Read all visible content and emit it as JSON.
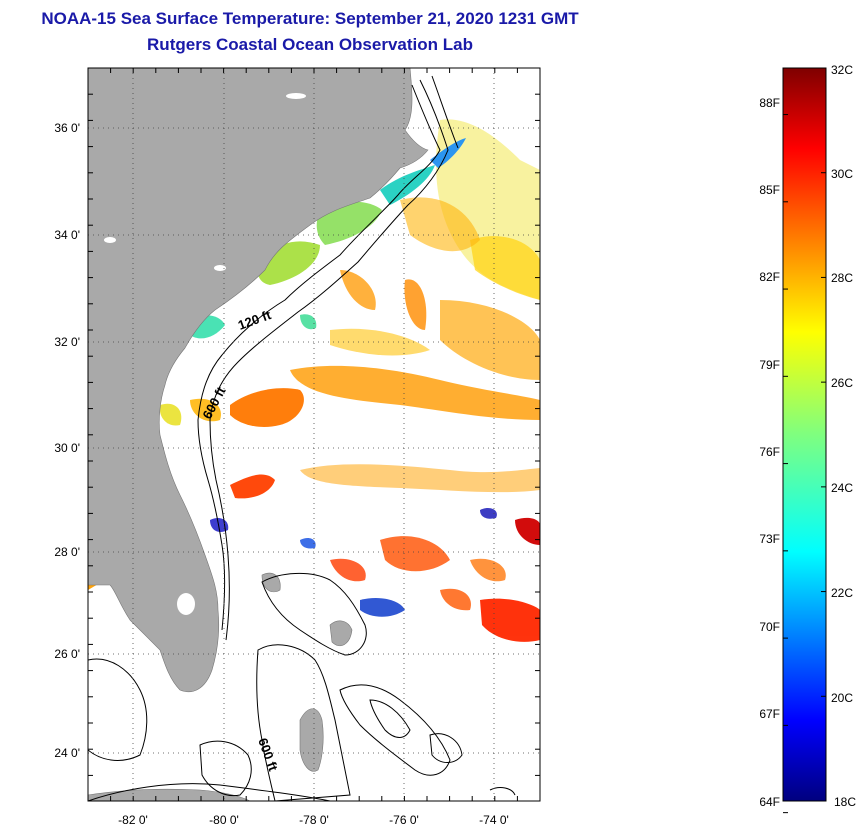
{
  "header": {
    "title": "NOAA-15 Sea Surface Temperature:  September 21, 2020 1231 GMT",
    "subtitle": "Rutgers Coastal Ocean Observation Lab"
  },
  "map": {
    "lat_labels": [
      "36 0'",
      "34 0'",
      "32 0'",
      "30 0'",
      "28 0'",
      "26 0'",
      "24 0'"
    ],
    "lon_labels": [
      "-82 0'",
      "-80 0'",
      "-78 0'",
      "-76 0'",
      "-74 0'"
    ],
    "lat_range": [
      23,
      37.2
    ],
    "lon_range": [
      -83,
      -73
    ],
    "contour_labels": [
      "120 ft",
      "600 ft",
      "600 ft"
    ],
    "colors": {
      "land": "#a9a9a9",
      "ocean_nodata": "#ffffff",
      "grid": "#333333",
      "contour": "#000000"
    }
  },
  "colorbar": {
    "min_c": 18,
    "max_c": 32,
    "celsius_labels": [
      "32C",
      "30C",
      "28C",
      "26C",
      "24C",
      "22C",
      "20C",
      "18C"
    ],
    "fahrenheit_labels": [
      "88F",
      "85F",
      "82F",
      "79F",
      "76F",
      "73F",
      "70F",
      "67F",
      "64F"
    ],
    "colormap": "jet"
  }
}
